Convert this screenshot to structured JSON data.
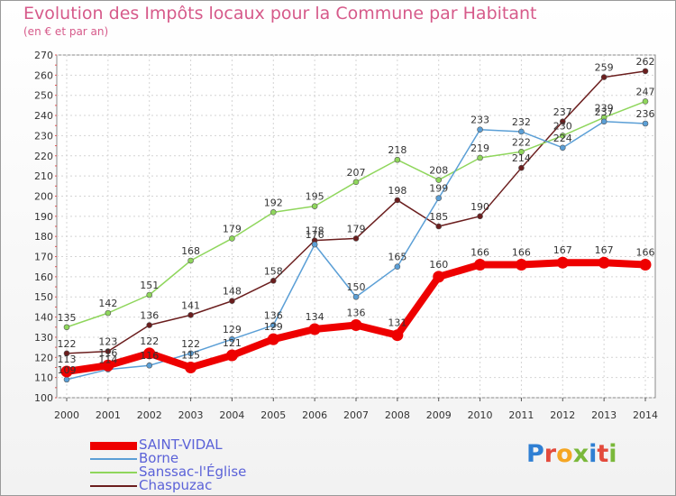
{
  "header": {
    "title": "Evolution des Impôts locaux pour la Commune par Habitant",
    "subtitle": "(en € et par an)"
  },
  "logo": {
    "text": "Proxiti"
  },
  "chart_data": {
    "type": "line",
    "x": [
      "2000",
      "2001",
      "2002",
      "2003",
      "2004",
      "2005",
      "2006",
      "2007",
      "2008",
      "2009",
      "2010",
      "2011",
      "2012",
      "2013",
      "2014"
    ],
    "ylim": [
      100,
      270
    ],
    "yticks": [
      100,
      110,
      120,
      130,
      140,
      150,
      160,
      170,
      180,
      190,
      200,
      210,
      220,
      230,
      240,
      250,
      260,
      270
    ],
    "grid": true,
    "legend_position": "bottom-left",
    "series": [
      {
        "name": "SAINT-VIDAL",
        "color": "#ee0000",
        "values": [
          113,
          116,
          122,
          115,
          121,
          129,
          134,
          136,
          131,
          160,
          166,
          166,
          167,
          167,
          166
        ]
      },
      {
        "name": "Borne",
        "color": "#5b9fd6",
        "values": [
          109,
          114,
          116,
          122,
          129,
          136,
          176,
          150,
          165,
          199,
          233,
          232,
          224,
          237,
          236
        ]
      },
      {
        "name": "Sanssac-l'Église",
        "color": "#8fd65c",
        "values": [
          135,
          142,
          151,
          168,
          179,
          192,
          195,
          207,
          218,
          208,
          219,
          222,
          230,
          239,
          247
        ]
      },
      {
        "name": "Chaspuzac",
        "color": "#6b1e1e",
        "values": [
          122,
          123,
          136,
          141,
          148,
          158,
          178,
          179,
          198,
          185,
          190,
          214,
          237,
          259,
          262
        ]
      }
    ]
  }
}
